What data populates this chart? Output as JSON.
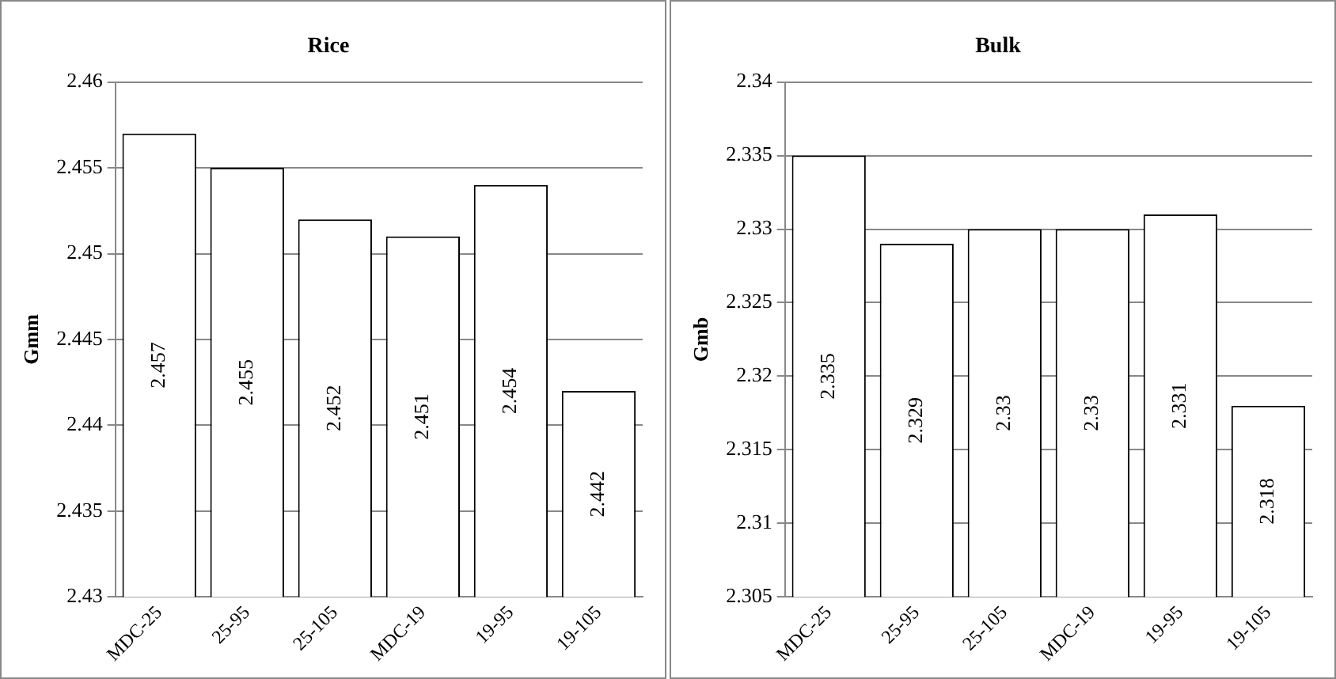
{
  "chart_data": [
    {
      "type": "bar",
      "title": "Rice",
      "ylabel": "Gmm",
      "categories": [
        "MDC-25",
        "25-95",
        "25-105",
        "MDC-19",
        "19-95",
        "19-105"
      ],
      "values": [
        2.457,
        2.455,
        2.452,
        2.451,
        2.454,
        2.442
      ],
      "color": "#ffffff",
      "ylim": [
        2.43,
        2.46
      ],
      "yticks": [
        2.43,
        2.435,
        2.44,
        2.445,
        2.45,
        2.455,
        2.46
      ],
      "grid": "y",
      "data_labels": true
    },
    {
      "type": "bar",
      "title": "Bulk",
      "ylabel": "Gmb",
      "categories": [
        "MDC-25",
        "25-95",
        "25-105",
        "MDC-19",
        "19-95",
        "19-105"
      ],
      "values": [
        2.335,
        2.329,
        2.33,
        2.33,
        2.331,
        2.318
      ],
      "color": "#ffffff",
      "ylim": [
        2.305,
        2.34
      ],
      "yticks": [
        2.305,
        2.31,
        2.315,
        2.32,
        2.325,
        2.33,
        2.335,
        2.34
      ],
      "grid": "y",
      "data_labels": true
    }
  ]
}
